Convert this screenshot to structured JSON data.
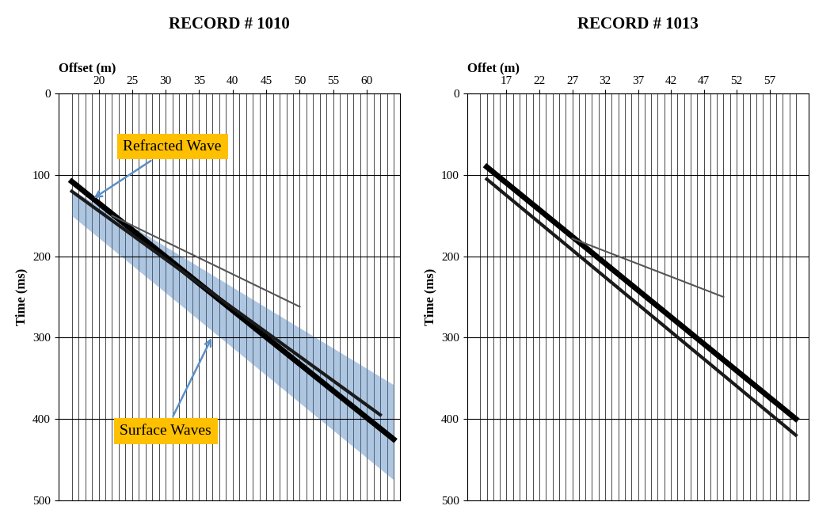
{
  "chart_data": [
    {
      "type": "line",
      "title": "RECORD # 1010",
      "x_label": "Offset (m)",
      "y_label": "Time (ms)",
      "xlim": [
        14,
        65
      ],
      "xticks": [
        20,
        25,
        30,
        35,
        40,
        45,
        50,
        55,
        60
      ],
      "ylim": [
        500,
        0
      ],
      "yticks": [
        0,
        100,
        200,
        300,
        400,
        500
      ],
      "grid": true,
      "traces": [
        16,
        17,
        18,
        19,
        20,
        21,
        22,
        23,
        24,
        25,
        26,
        27,
        28,
        29,
        30,
        31,
        32,
        33,
        34,
        35,
        36,
        37,
        38,
        39,
        40,
        41,
        42,
        43,
        44,
        45,
        46,
        47,
        48,
        49,
        50,
        51,
        52,
        53,
        54,
        55,
        56,
        57,
        58,
        59,
        60,
        61,
        62,
        63,
        64
      ],
      "series": [
        {
          "x": [
            16,
            64
          ],
          "values": [
            108,
            425
          ],
          "color": "#000000"
        },
        {
          "x": [
            16,
            62
          ],
          "values": [
            120,
            395
          ],
          "color": "#1a1a1a"
        },
        {
          "x": [
            22,
            50
          ],
          "values": [
            150,
            262
          ],
          "color": "#555555"
        }
      ],
      "band": {
        "x": [
          16,
          64
        ],
        "lower": [
          118,
          358
        ],
        "upper": [
          150,
          475
        ],
        "color": "#4f81bd"
      },
      "annotations": [
        {
          "text": "Refracted Wave",
          "x": 19,
          "y": 130,
          "text_x": 31,
          "text_y": 65,
          "color": "#ffc000"
        },
        {
          "text": "Surface Waves",
          "x": 37,
          "y": 298,
          "text_x": 30,
          "text_y": 415,
          "color": "#ffc000"
        }
      ]
    },
    {
      "type": "line",
      "title": "RECORD # 1013",
      "x_label": "Offet (m)",
      "y_label": "Time (ms)",
      "xlim": [
        11,
        63
      ],
      "xticks": [
        17,
        22,
        27,
        32,
        37,
        42,
        47,
        52,
        57
      ],
      "ylim": [
        500,
        0
      ],
      "yticks": [
        0,
        100,
        200,
        300,
        400,
        500
      ],
      "grid": true,
      "traces": [
        13,
        14,
        15,
        16,
        17,
        18,
        19,
        20,
        21,
        22,
        23,
        24,
        25,
        26,
        27,
        28,
        29,
        30,
        31,
        32,
        33,
        34,
        35,
        36,
        37,
        38,
        39,
        40,
        41,
        42,
        43,
        44,
        45,
        46,
        47,
        48,
        49,
        50,
        51,
        52,
        53,
        54,
        55,
        56,
        57,
        58,
        59,
        60,
        61
      ],
      "series": [
        {
          "x": [
            14,
            61
          ],
          "values": [
            90,
            400
          ],
          "color": "#000000"
        },
        {
          "x": [
            14,
            61
          ],
          "values": [
            105,
            420
          ],
          "color": "#1a1a1a"
        },
        {
          "x": [
            27,
            50
          ],
          "values": [
            178,
            250
          ],
          "color": "#555555"
        }
      ]
    }
  ]
}
